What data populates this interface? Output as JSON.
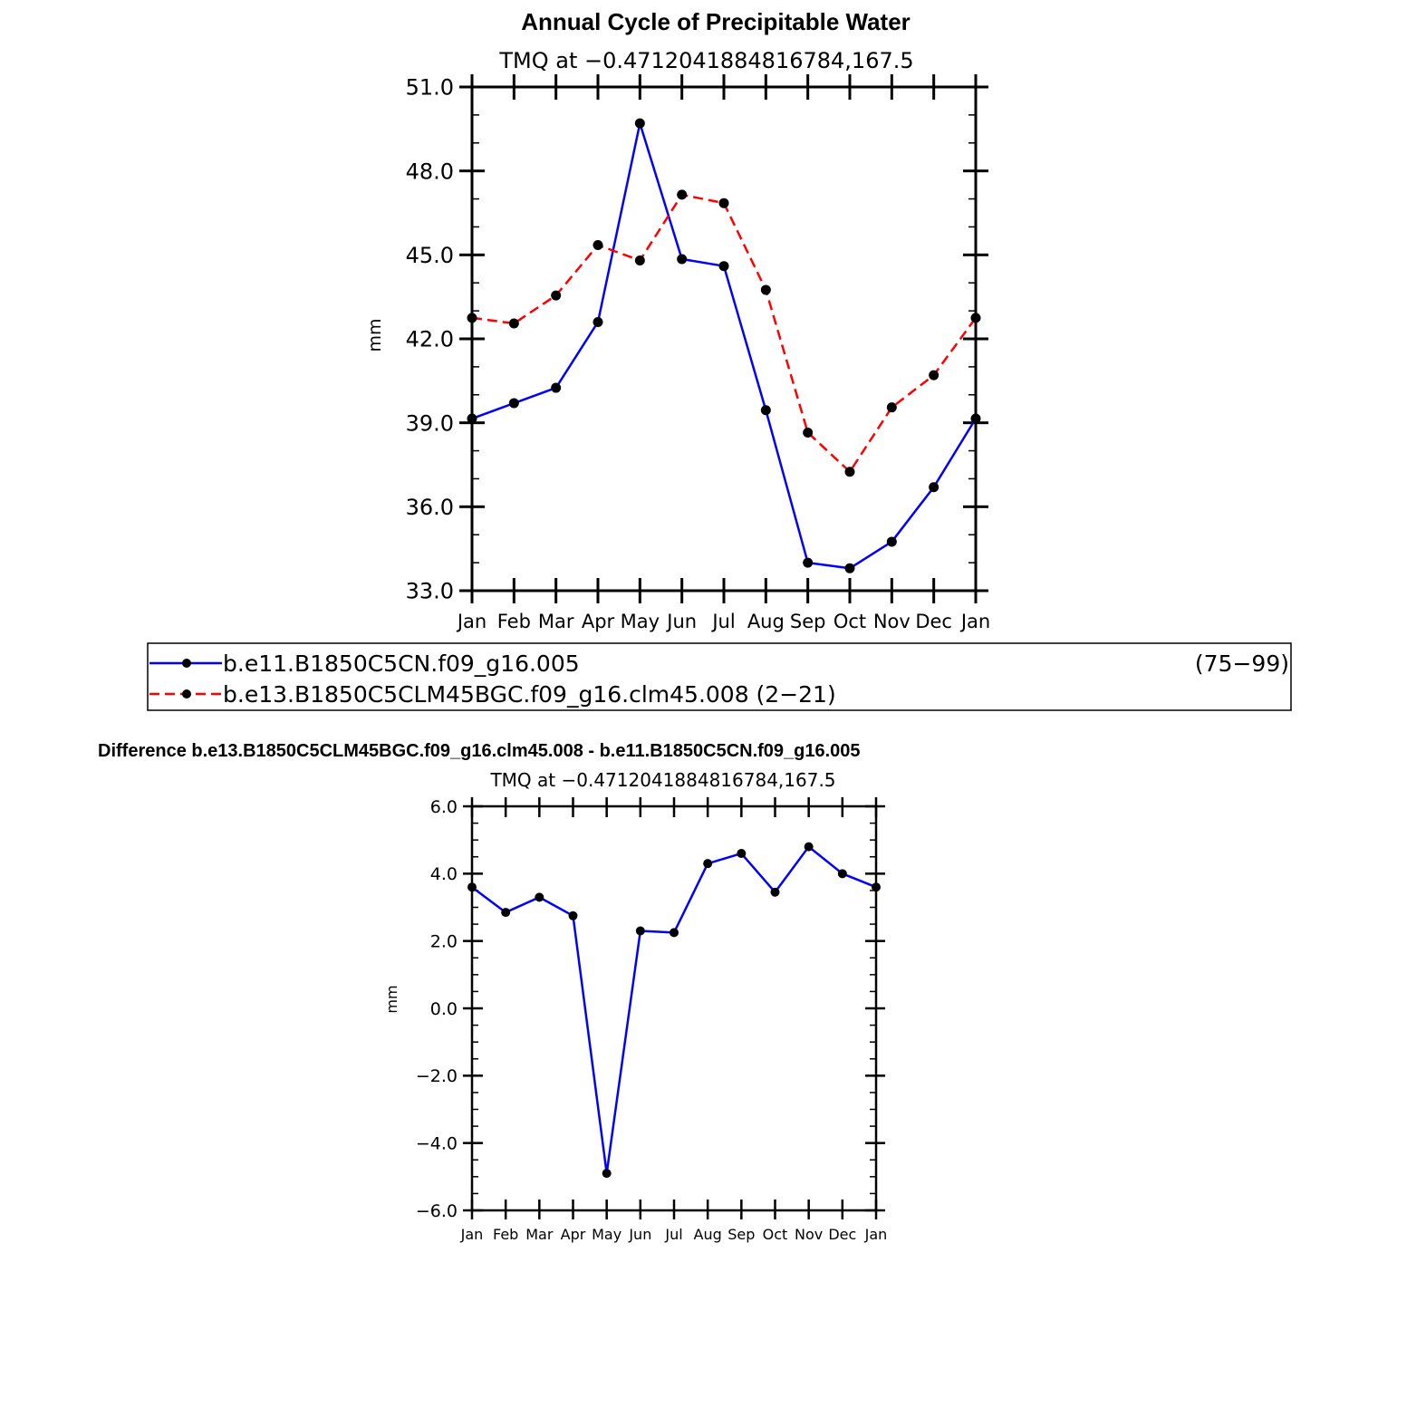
{
  "colors": {
    "series_blue": "#0000ff",
    "series_red": "#ff0000",
    "marker": "#000000",
    "axis": "#000000",
    "background": "#ffffff"
  },
  "chart_data": [
    {
      "type": "line",
      "title": "Annual Cycle of Precipitable Water",
      "subtitle": "TMQ at −0.4712041884816784,167.5",
      "xlabel": "",
      "ylabel": "mm",
      "categories": [
        "Jan",
        "Feb",
        "Mar",
        "Apr",
        "May",
        "Jun",
        "Jul",
        "Aug",
        "Sep",
        "Oct",
        "Nov",
        "Dec",
        "Jan"
      ],
      "ylim": [
        33.0,
        51.0
      ],
      "yticks": [
        "33.0",
        "36.0",
        "39.0",
        "42.0",
        "45.0",
        "48.0",
        "51.0"
      ],
      "ytick_values": [
        33,
        36,
        39,
        42,
        45,
        48,
        51
      ],
      "grid": false,
      "series": [
        {
          "name": "b.e11.B1850C5CN.f09_g16.005",
          "years": "(75−99)",
          "color": "#0000ff",
          "dash": "solid",
          "values": [
            39.15,
            39.7,
            40.25,
            42.6,
            49.7,
            44.85,
            44.6,
            39.45,
            34.0,
            33.8,
            34.75,
            36.7,
            39.15
          ]
        },
        {
          "name": "b.e13.B1850C5CLM45BGC.f09_g16.clm45.008",
          "years": "(2−21)",
          "color": "#ff0000",
          "dash": "dashed",
          "values": [
            42.75,
            42.55,
            43.55,
            45.35,
            44.8,
            47.15,
            46.85,
            43.75,
            38.65,
            37.25,
            39.55,
            40.7,
            42.75
          ]
        }
      ],
      "legend": {
        "placement": "bottom",
        "entries": [
          {
            "label": "b.e11.B1850C5CN.f09_g16.005",
            "years": "(75−99)"
          },
          {
            "label": "b.e13.B1850C5CLM45BGC.f09_g16.clm45.008 (2−21)"
          }
        ]
      }
    },
    {
      "type": "line",
      "title": "Difference b.e13.B1850C5CLM45BGC.f09_g16.clm45.008 - b.e11.B1850C5CN.f09_g16.005",
      "subtitle": "TMQ at −0.4712041884816784,167.5",
      "xlabel": "",
      "ylabel": "mm",
      "categories": [
        "Jan",
        "Feb",
        "Mar",
        "Apr",
        "May",
        "Jun",
        "Jul",
        "Aug",
        "Sep",
        "Oct",
        "Nov",
        "Dec",
        "Jan"
      ],
      "ylim": [
        -6.0,
        6.0
      ],
      "yticks": [
        "−6.0",
        "−4.0",
        "−2.0",
        "0.0",
        "2.0",
        "4.0",
        "6.0"
      ],
      "ytick_values": [
        -6,
        -4,
        -2,
        0,
        2,
        4,
        6
      ],
      "grid": false,
      "series": [
        {
          "name": "difference",
          "color": "#0000ff",
          "dash": "solid",
          "values": [
            3.6,
            2.85,
            3.3,
            2.75,
            -4.9,
            2.3,
            2.25,
            4.3,
            4.6,
            3.45,
            4.8,
            4.0,
            3.6
          ]
        }
      ]
    }
  ]
}
